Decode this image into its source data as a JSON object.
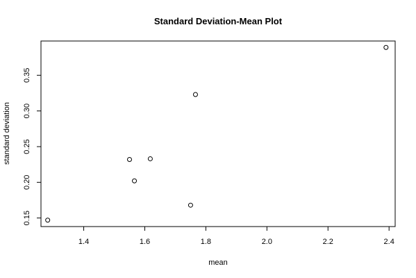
{
  "chart_data": {
    "type": "scatter",
    "title": "Standard Deviation-Mean Plot",
    "xlabel": "mean",
    "ylabel": "standard deviation",
    "xlim": [
      1.26,
      2.42
    ],
    "ylim": [
      0.138,
      0.398
    ],
    "x_ticks": [
      1.4,
      1.6,
      1.8,
      2.0,
      2.2,
      2.4
    ],
    "x_tick_labels": [
      "1.4",
      "1.6",
      "1.8",
      "2.0",
      "2.2",
      "2.4"
    ],
    "y_ticks": [
      0.15,
      0.2,
      0.25,
      0.3,
      0.35
    ],
    "y_tick_labels": [
      "0.15",
      "0.20",
      "0.25",
      "0.30",
      "0.35"
    ],
    "grid": false,
    "marker": "open-circle",
    "marker_color": "#000000",
    "points": [
      {
        "x": 1.282,
        "y": 0.147
      },
      {
        "x": 1.55,
        "y": 0.232
      },
      {
        "x": 1.566,
        "y": 0.202
      },
      {
        "x": 1.618,
        "y": 0.233
      },
      {
        "x": 1.75,
        "y": 0.168
      },
      {
        "x": 1.766,
        "y": 0.323
      },
      {
        "x": 2.39,
        "y": 0.389
      }
    ]
  }
}
